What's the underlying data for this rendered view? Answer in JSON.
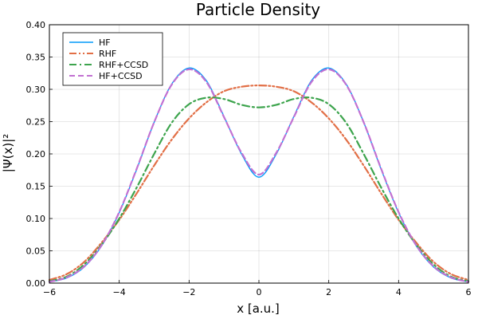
{
  "chart_data": {
    "type": "line",
    "title": "Particle Density",
    "xlabel": "x [a.u.]",
    "ylabel": "|Ψ(x)|²",
    "xlim": [
      -6,
      6
    ],
    "ylim": [
      0,
      0.4
    ],
    "xticks": [
      -6,
      -4,
      -2,
      0,
      2,
      4,
      6
    ],
    "xtick_labels": [
      "−6",
      "−4",
      "−2",
      "0",
      "2",
      "4",
      "6"
    ],
    "yticks": [
      0,
      0.05,
      0.1,
      0.15,
      0.2,
      0.25,
      0.3,
      0.35,
      0.4
    ],
    "ytick_labels": [
      "0.00",
      "0.05",
      "0.10",
      "0.15",
      "0.20",
      "0.25",
      "0.30",
      "0.35",
      "0.40"
    ],
    "grid": true,
    "legend": "top-left",
    "x": [
      -6,
      -5.5,
      -5,
      -4.5,
      -4,
      -3.5,
      -3,
      -2.5,
      -2,
      -1.5,
      -1,
      -0.5,
      0,
      0.5,
      1,
      1.5,
      2,
      2.5,
      3,
      3.5,
      4,
      4.5,
      5,
      5.5,
      6
    ],
    "series": [
      {
        "name": "HF",
        "color": "#009AFA",
        "dash": "solid",
        "values": [
          0.002,
          0.008,
          0.025,
          0.058,
          0.109,
          0.176,
          0.249,
          0.308,
          0.333,
          0.313,
          0.258,
          0.2,
          0.164,
          0.2,
          0.258,
          0.313,
          0.333,
          0.308,
          0.249,
          0.176,
          0.109,
          0.058,
          0.025,
          0.008,
          0.002
        ]
      },
      {
        "name": "RHF",
        "color": "#E26F46",
        "dash": "dashdotdot",
        "values": [
          0.005,
          0.014,
          0.033,
          0.063,
          0.098,
          0.139,
          0.182,
          0.222,
          0.255,
          0.28,
          0.297,
          0.304,
          0.306,
          0.304,
          0.297,
          0.28,
          0.255,
          0.222,
          0.182,
          0.139,
          0.098,
          0.063,
          0.033,
          0.014,
          0.005
        ]
      },
      {
        "name": "RHF+CCSD",
        "color": "#3DA44D",
        "dash": "dashdot",
        "values": [
          0.003,
          0.01,
          0.029,
          0.06,
          0.1,
          0.148,
          0.2,
          0.248,
          0.277,
          0.287,
          0.285,
          0.276,
          0.272,
          0.276,
          0.285,
          0.287,
          0.277,
          0.248,
          0.2,
          0.148,
          0.1,
          0.06,
          0.029,
          0.01,
          0.003
        ]
      },
      {
        "name": "HF+CCSD",
        "color": "#C271D2",
        "dash": "dash",
        "values": [
          0.002,
          0.009,
          0.026,
          0.059,
          0.11,
          0.177,
          0.249,
          0.307,
          0.331,
          0.311,
          0.257,
          0.202,
          0.168,
          0.202,
          0.257,
          0.311,
          0.331,
          0.307,
          0.249,
          0.177,
          0.11,
          0.059,
          0.026,
          0.009,
          0.002
        ]
      }
    ]
  }
}
